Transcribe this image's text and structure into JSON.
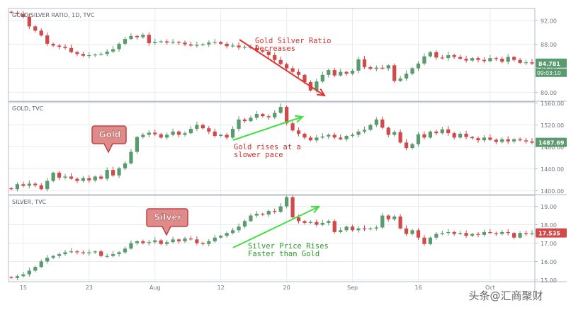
{
  "colors": {
    "up": "#5a9a6f",
    "down": "#d04a4a",
    "grid": "#e9ecf1",
    "axis_text": "#707582",
    "border": "#b7bcc6",
    "price_tag_up": "#5a9a6f",
    "price_tag_down": "#d04a4a",
    "callout_fill": "#e18a8a",
    "callout_stroke": "#b74747",
    "arrow_red": "#e23333",
    "arrow_green": "#3fe13f",
    "annotation_red": "#d23030",
    "annotation_green": "#2a9a2a"
  },
  "x_axis": {
    "tick_labels": [
      "15",
      "23",
      "Aug",
      "12",
      "20",
      "Sep",
      "16",
      "Oct"
    ]
  },
  "watermark": "头条@汇商聚财",
  "chart_data": [
    {
      "id": "ratio",
      "type": "candlestick",
      "title": "GOLD/SILVER RATIO, 1D, TVC",
      "ylim": [
        78.5,
        94
      ],
      "y_ticks": [
        80.0,
        84.0,
        88.0,
        92.0
      ],
      "last_price": "84.781",
      "last_price_color": "up",
      "countdown": "09:03:10",
      "grid": true,
      "annotation": {
        "text": [
          "Gold Silver Ratio",
          "Decreases"
        ],
        "color": "annotation_red"
      },
      "closes": [
        93.3,
        93.1,
        92.6,
        91.0,
        90.3,
        89.5,
        88.1,
        87.8,
        87.6,
        87.4,
        86.7,
        86.4,
        86.1,
        86.2,
        86.3,
        86.4,
        86.8,
        87.2,
        88.1,
        88.9,
        89.4,
        89.2,
        89.6,
        88.2,
        88.4,
        88.5,
        88.3,
        88.4,
        88.3,
        88.0,
        87.8,
        87.9,
        88.0,
        88.3,
        88.4,
        88.1,
        87.7,
        87.8,
        87.5,
        87.6,
        87.4,
        87.0,
        86.8,
        86.2,
        85.4,
        84.7,
        84.0,
        83.4,
        82.9,
        81.7,
        80.3,
        81.8,
        82.9,
        83.7,
        82.8,
        83.4,
        83.1,
        83.6,
        85.5,
        84.2,
        83.9,
        84.1,
        84.0,
        84.5,
        81.9,
        82.3,
        83.1,
        84.0,
        84.8,
        86.0,
        86.7,
        85.8,
        85.7,
        86.2,
        85.9,
        85.6,
        85.3,
        85.7,
        85.4,
        85.2,
        85.7,
        85.6,
        85.1,
        85.9,
        85.4,
        84.9,
        85.0,
        84.8
      ]
    },
    {
      "id": "gold",
      "type": "candlestick",
      "title": "GOLD, TVC",
      "ylim": [
        1393,
        1562
      ],
      "y_ticks": [
        1400.0,
        1440.0,
        1480.0,
        1520.0,
        1560.0
      ],
      "last_price": "1487.69",
      "last_price_color": "up",
      "grid": true,
      "callout": "Gold",
      "annotation": {
        "text": [
          "Gold rises at a",
          "slower pace"
        ],
        "color": "annotation_red"
      },
      "closes": [
        1403,
        1412,
        1409,
        1413,
        1410,
        1403,
        1418,
        1433,
        1424,
        1426,
        1422,
        1418,
        1423,
        1419,
        1426,
        1422,
        1438,
        1428,
        1441,
        1450,
        1471,
        1498,
        1502,
        1506,
        1503,
        1497,
        1502,
        1508,
        1502,
        1505,
        1513,
        1520,
        1514,
        1508,
        1500,
        1502,
        1497,
        1513,
        1530,
        1527,
        1533,
        1540,
        1536,
        1534,
        1542,
        1553,
        1523,
        1510,
        1504,
        1497,
        1492,
        1497,
        1499,
        1502,
        1497,
        1494,
        1500,
        1502,
        1508,
        1511,
        1520,
        1530,
        1515,
        1502,
        1507,
        1488,
        1478,
        1485,
        1503,
        1497,
        1508,
        1505,
        1512,
        1505,
        1497,
        1504,
        1498,
        1496,
        1492,
        1497,
        1493,
        1489,
        1494,
        1490,
        1494,
        1492,
        1490,
        1487.69
      ]
    },
    {
      "id": "silver",
      "type": "candlestick",
      "title": "SILVER, TVC",
      "ylim": [
        14.9,
        19.6
      ],
      "y_ticks": [
        15.0,
        16.0,
        17.0,
        18.0,
        19.0
      ],
      "last_price": "17.535",
      "last_price_color": "down",
      "grid": true,
      "callout": "Silver",
      "annotation": {
        "text": [
          "Silver Price Rises",
          "Faster than Gold"
        ],
        "color": "annotation_green"
      },
      "closes": [
        15.1,
        15.2,
        15.3,
        15.5,
        15.7,
        16.0,
        16.2,
        16.3,
        16.4,
        16.5,
        16.55,
        16.5,
        16.45,
        16.5,
        16.55,
        16.3,
        16.3,
        16.4,
        16.5,
        16.7,
        17.0,
        17.1,
        17.0,
        17.05,
        17.15,
        16.95,
        17.05,
        17.2,
        17.1,
        17.25,
        17.2,
        17.0,
        16.95,
        17.1,
        17.3,
        17.4,
        17.55,
        17.7,
        17.9,
        18.2,
        18.5,
        18.6,
        18.55,
        18.75,
        18.7,
        19.0,
        19.5,
        18.4,
        18.2,
        18.1,
        18.15,
        18.0,
        18.1,
        18.2,
        17.6,
        17.7,
        17.9,
        17.7,
        17.8,
        17.75,
        17.8,
        17.85,
        18.5,
        18.3,
        18.45,
        17.8,
        17.5,
        17.7,
        17.3,
        16.95,
        17.3,
        17.5,
        17.55,
        17.6,
        17.5,
        17.55,
        17.4,
        17.5,
        17.45,
        17.6,
        17.55,
        17.5,
        17.6,
        17.55,
        17.3,
        17.55,
        17.5,
        17.535
      ]
    }
  ]
}
